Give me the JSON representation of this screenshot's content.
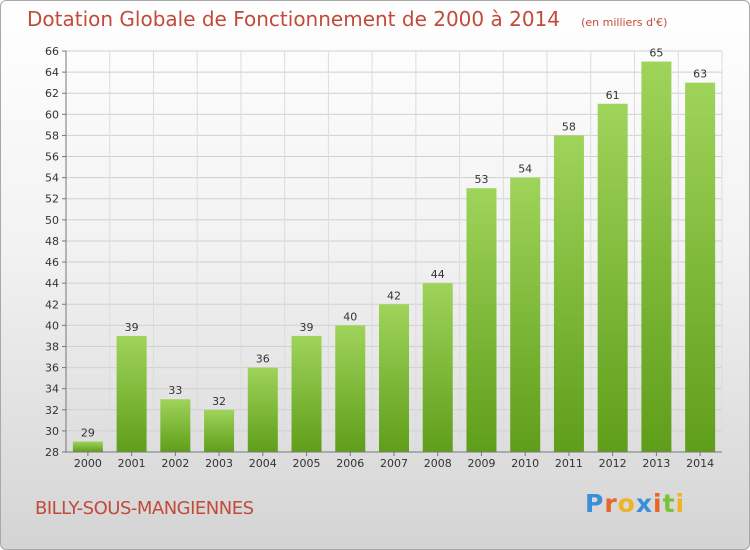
{
  "chart_data": {
    "type": "bar",
    "title": "Dotation Globale de Fonctionnement de 2000 à 2014",
    "unit": "(en milliers d'€)",
    "categories": [
      "2000",
      "2001",
      "2002",
      "2003",
      "2004",
      "2005",
      "2006",
      "2007",
      "2008",
      "2009",
      "2010",
      "2011",
      "2012",
      "2013",
      "2014"
    ],
    "values": [
      29,
      39,
      33,
      32,
      36,
      39,
      40,
      42,
      44,
      53,
      54,
      58,
      61,
      65,
      63
    ],
    "ylim": [
      28,
      66
    ],
    "yticks": [
      28,
      30,
      32,
      34,
      36,
      38,
      40,
      42,
      44,
      46,
      48,
      50,
      52,
      54,
      56,
      58,
      60,
      62,
      64,
      66
    ],
    "grid": true,
    "bar_color": "#7cc13a"
  },
  "footer": {
    "commune": "BILLY-SOUS-MANGIENNES",
    "brand": "Proxiti",
    "brand_colors": [
      "#3a8fd6",
      "#e8652a",
      "#f0b323",
      "#3a8fd6",
      "#e8652a",
      "#7cc13a",
      "#f0b323"
    ]
  }
}
